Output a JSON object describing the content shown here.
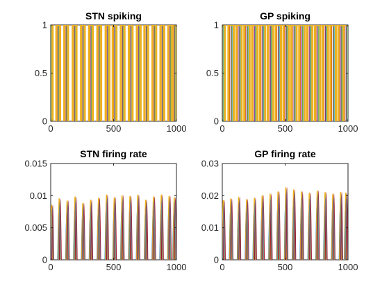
{
  "figure": {
    "background": "#ffffff",
    "axis_color": "#262626"
  },
  "series_colors": [
    "#0072BD",
    "#D95319",
    "#EDB120",
    "#7E2F8E",
    "#77AC30",
    "#4DBEEE",
    "#A2142F"
  ],
  "chart_data": [
    {
      "type": "line",
      "title": "STN spiking",
      "xlim": [
        0,
        1000
      ],
      "ylim": [
        0,
        1
      ],
      "xticks": [
        0,
        500,
        1000
      ],
      "yticks": [
        0,
        0.5,
        1
      ],
      "ytick_labels": [
        "0",
        "0.5",
        "1"
      ],
      "pattern": {
        "kind": "bursts",
        "x": [
          0,
          60,
          123,
          190,
          256,
          320,
          386,
          452,
          508,
          572,
          636,
          700,
          760,
          824,
          888,
          950,
          985
        ],
        "y": [
          1,
          1,
          1,
          1,
          1,
          1,
          1,
          1,
          1,
          1,
          1,
          1,
          1,
          1,
          1,
          1,
          1
        ],
        "width": 30,
        "dominant_color": "#EDB120"
      }
    },
    {
      "type": "line",
      "title": "GP spiking",
      "xlim": [
        0,
        1000
      ],
      "ylim": [
        0,
        1
      ],
      "xticks": [
        0,
        500,
        1000
      ],
      "yticks": [
        0,
        0.5,
        1
      ],
      "ytick_labels": [
        "0",
        "0.5",
        "1"
      ],
      "pattern": {
        "kind": "bursts",
        "x": [
          0,
          70,
          133,
          196,
          258,
          320,
          383,
          446,
          508,
          570,
          633,
          695,
          758,
          820,
          882,
          944,
          985
        ],
        "y": [
          1,
          1,
          1,
          1,
          1,
          1,
          1,
          1,
          1,
          1,
          1,
          1,
          1,
          1,
          1,
          1,
          1
        ],
        "width": 42,
        "dominant_color": "#EDB120"
      }
    },
    {
      "type": "line",
      "title": "STN firing rate",
      "xlim": [
        0,
        1000
      ],
      "ylim": [
        0,
        0.015
      ],
      "xticks": [
        0,
        500,
        1000
      ],
      "yticks": [
        0,
        0.005,
        0.01,
        0.015
      ],
      "ytick_labels": [
        "0",
        "0.005",
        "0.01",
        "0.015"
      ],
      "pattern": {
        "kind": "peaks",
        "x": [
          10,
          70,
          133,
          196,
          258,
          320,
          383,
          446,
          508,
          570,
          633,
          695,
          758,
          820,
          882,
          944,
          985
        ],
        "y": [
          0.0085,
          0.0095,
          0.0092,
          0.0098,
          0.0088,
          0.0093,
          0.0096,
          0.0101,
          0.0097,
          0.01,
          0.0099,
          0.0101,
          0.0093,
          0.0098,
          0.0101,
          0.0099,
          0.0097
        ],
        "width": 16,
        "dominant_color": "#EDB120"
      }
    },
    {
      "type": "line",
      "title": "GP firing rate",
      "xlim": [
        0,
        1000
      ],
      "ylim": [
        0,
        0.03
      ],
      "xticks": [
        0,
        500,
        1000
      ],
      "yticks": [
        0,
        0.01,
        0.02,
        0.03
      ],
      "ytick_labels": [
        "0",
        "0.01",
        "0.02",
        "0.03"
      ],
      "pattern": {
        "kind": "peaks",
        "x": [
          10,
          70,
          133,
          196,
          258,
          320,
          383,
          446,
          508,
          570,
          633,
          695,
          758,
          820,
          882,
          944,
          985
        ],
        "y": [
          0.0185,
          0.019,
          0.0195,
          0.0188,
          0.0192,
          0.02,
          0.0205,
          0.0212,
          0.0225,
          0.0218,
          0.0212,
          0.0208,
          0.0215,
          0.021,
          0.0205,
          0.021,
          0.0208
        ],
        "width": 16,
        "dominant_color": "#EDB120"
      }
    }
  ]
}
